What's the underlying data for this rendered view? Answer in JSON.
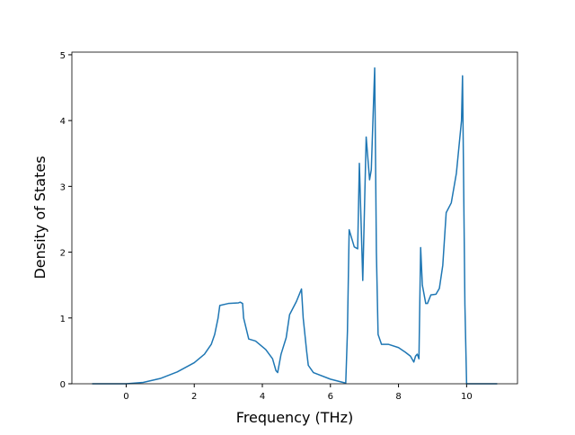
{
  "chart_data": {
    "type": "line",
    "x_label": "Frequency (THz)",
    "y_label": "Density of States",
    "x": [
      -1,
      0,
      0.5,
      1,
      1.5,
      2,
      2.3,
      2.5,
      2.6,
      2.7,
      2.75,
      3,
      3.3,
      3.35,
      3.42,
      3.45,
      3.6,
      3.8,
      4.1,
      4.3,
      4.4,
      4.45,
      4.55,
      4.7,
      4.8,
      5.0,
      5.15,
      5.2,
      5.3,
      5.35,
      5.5,
      6.0,
      6.45,
      6.5,
      6.55,
      6.7,
      6.8,
      6.85,
      6.95,
      7.05,
      7.15,
      7.2,
      7.3,
      7.35,
      7.4,
      7.5,
      7.7,
      8.0,
      8.2,
      8.35,
      8.45,
      8.5,
      8.55,
      8.6,
      8.65,
      8.7,
      8.8,
      8.85,
      8.95,
      9.1,
      9.2,
      9.3,
      9.4,
      9.55,
      9.7,
      9.85,
      9.88,
      9.95,
      10.0,
      10.9
    ],
    "series": [
      {
        "color": "#1f77b4",
        "values": [
          0,
          0,
          0.02,
          0.08,
          0.18,
          0.32,
          0.45,
          0.6,
          0.75,
          1.0,
          1.19,
          1.22,
          1.23,
          1.24,
          1.22,
          1.0,
          0.68,
          0.65,
          0.52,
          0.38,
          0.2,
          0.17,
          0.45,
          0.7,
          1.05,
          1.25,
          1.44,
          1.0,
          0.5,
          0.28,
          0.17,
          0.07,
          0.01,
          0.8,
          2.34,
          2.08,
          2.05,
          3.35,
          1.57,
          3.75,
          3.1,
          3.25,
          4.8,
          2.0,
          0.75,
          0.6,
          0.6,
          0.55,
          0.48,
          0.42,
          0.33,
          0.42,
          0.45,
          0.38,
          2.07,
          1.5,
          1.22,
          1.22,
          1.35,
          1.36,
          1.45,
          1.8,
          2.6,
          2.75,
          3.2,
          4.0,
          4.68,
          1.2,
          0,
          0
        ]
      }
    ],
    "xlim": [
      -1.595,
      11.495
    ],
    "ylim": [
      0,
      5.04
    ],
    "xticks": [
      0,
      2,
      4,
      6,
      8,
      10
    ],
    "yticks": [
      0,
      1,
      2,
      3,
      4,
      5
    ]
  }
}
